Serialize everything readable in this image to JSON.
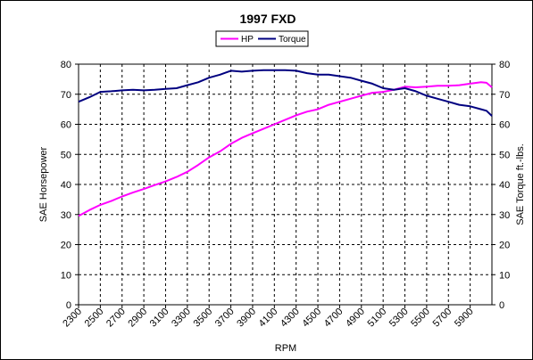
{
  "chart_data": {
    "type": "line",
    "title": "1997 FXD",
    "xlabel": "RPM",
    "ylabel": "SAE Horsepower",
    "y2label": "SAE Torque ft.-lbs.",
    "xlim": [
      2300,
      6100
    ],
    "ylim": [
      0,
      80
    ],
    "y2lim": [
      0,
      80
    ],
    "yticks": [
      "0",
      "10",
      "20",
      "30",
      "40",
      "50",
      "60",
      "70",
      "80"
    ],
    "xticks": [
      "2300",
      "2500",
      "2700",
      "2900",
      "3100",
      "3300",
      "3500",
      "3700",
      "3900",
      "4100",
      "4300",
      "4500",
      "4700",
      "4900",
      "5100",
      "5300",
      "5500",
      "5700",
      "5900"
    ],
    "grid": true,
    "legend_position": "top-center",
    "series": [
      {
        "name": "HP",
        "color": "#ff00ff",
        "x": [
          2300,
          2400,
          2500,
          2600,
          2700,
          2800,
          2900,
          3000,
          3100,
          3200,
          3300,
          3400,
          3500,
          3600,
          3700,
          3800,
          3900,
          4000,
          4100,
          4200,
          4300,
          4400,
          4500,
          4600,
          4700,
          4800,
          4900,
          5000,
          5100,
          5200,
          5300,
          5400,
          5500,
          5600,
          5700,
          5800,
          5900,
          6000,
          6050,
          6100
        ],
        "values": [
          29.5,
          31.5,
          33.2,
          34.5,
          36.0,
          37.3,
          38.5,
          39.8,
          41.0,
          42.5,
          44.2,
          46.5,
          49.0,
          51.0,
          53.5,
          55.5,
          57.0,
          58.5,
          60.0,
          61.5,
          63.0,
          64.2,
          65.0,
          66.5,
          67.5,
          68.5,
          69.5,
          70.5,
          70.8,
          71.5,
          72.5,
          72.3,
          72.5,
          72.8,
          72.8,
          73.0,
          73.5,
          74.0,
          73.8,
          72.3
        ]
      },
      {
        "name": "Torque",
        "color": "#000080",
        "x": [
          2300,
          2400,
          2500,
          2600,
          2700,
          2800,
          2900,
          3000,
          3100,
          3200,
          3300,
          3400,
          3500,
          3600,
          3700,
          3800,
          3900,
          4000,
          4100,
          4200,
          4300,
          4400,
          4500,
          4600,
          4700,
          4800,
          4900,
          5000,
          5100,
          5200,
          5300,
          5400,
          5500,
          5600,
          5700,
          5800,
          5900,
          6000,
          6050,
          6100
        ],
        "values": [
          67.5,
          69.0,
          70.8,
          71.0,
          71.3,
          71.5,
          71.3,
          71.5,
          71.8,
          72.0,
          73.0,
          74.0,
          75.5,
          76.5,
          77.8,
          77.5,
          77.8,
          78.0,
          78.0,
          78.0,
          77.8,
          77.0,
          76.5,
          76.5,
          76.0,
          75.5,
          74.5,
          73.5,
          72.0,
          71.5,
          72.0,
          71.0,
          69.5,
          68.5,
          67.5,
          66.5,
          66.0,
          65.0,
          64.5,
          62.8
        ]
      }
    ]
  }
}
